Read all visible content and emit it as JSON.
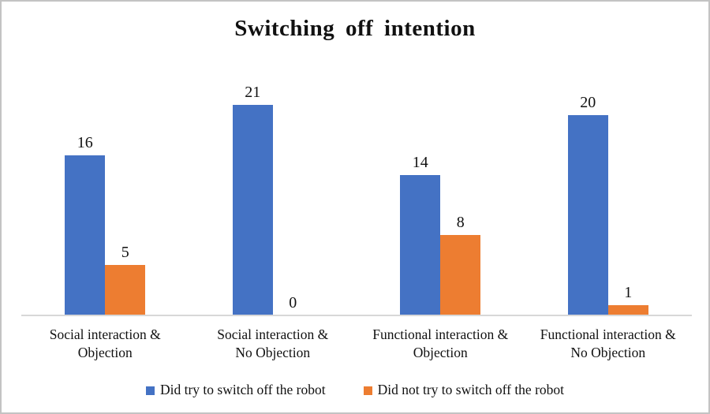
{
  "chart": {
    "title": "Switching off intention"
  },
  "chart_data": {
    "type": "bar",
    "title": "Switching off intention",
    "xlabel": "",
    "ylabel": "",
    "grid": false,
    "legend_position": "bottom",
    "ylim": [
      0,
      22
    ],
    "categories": [
      "Social interaction & Objection",
      "Social interaction & No Objection",
      "Functional interaction & Objection",
      "Functional interaction & No Objection"
    ],
    "category_lines": [
      [
        "Social interaction &",
        "Objection"
      ],
      [
        "Social interaction &",
        "No Objection"
      ],
      [
        "Functional interaction &",
        "Objection"
      ],
      [
        "Functional interaction &",
        "No Objection"
      ]
    ],
    "series": [
      {
        "name": "Did try to switch off the robot",
        "color": "#4472C4",
        "values": [
          16,
          21,
          14,
          20
        ]
      },
      {
        "name": "Did not try to switch off the robot",
        "color": "#ED7D31",
        "values": [
          5,
          0,
          8,
          1
        ]
      }
    ]
  },
  "colors": {
    "did_try_blue": "#4472C4",
    "did_not_try_orange": "#ED7D31",
    "axis_line": "#D8D8D8",
    "frame_border": "#C3C3C3",
    "text": "#111111"
  }
}
